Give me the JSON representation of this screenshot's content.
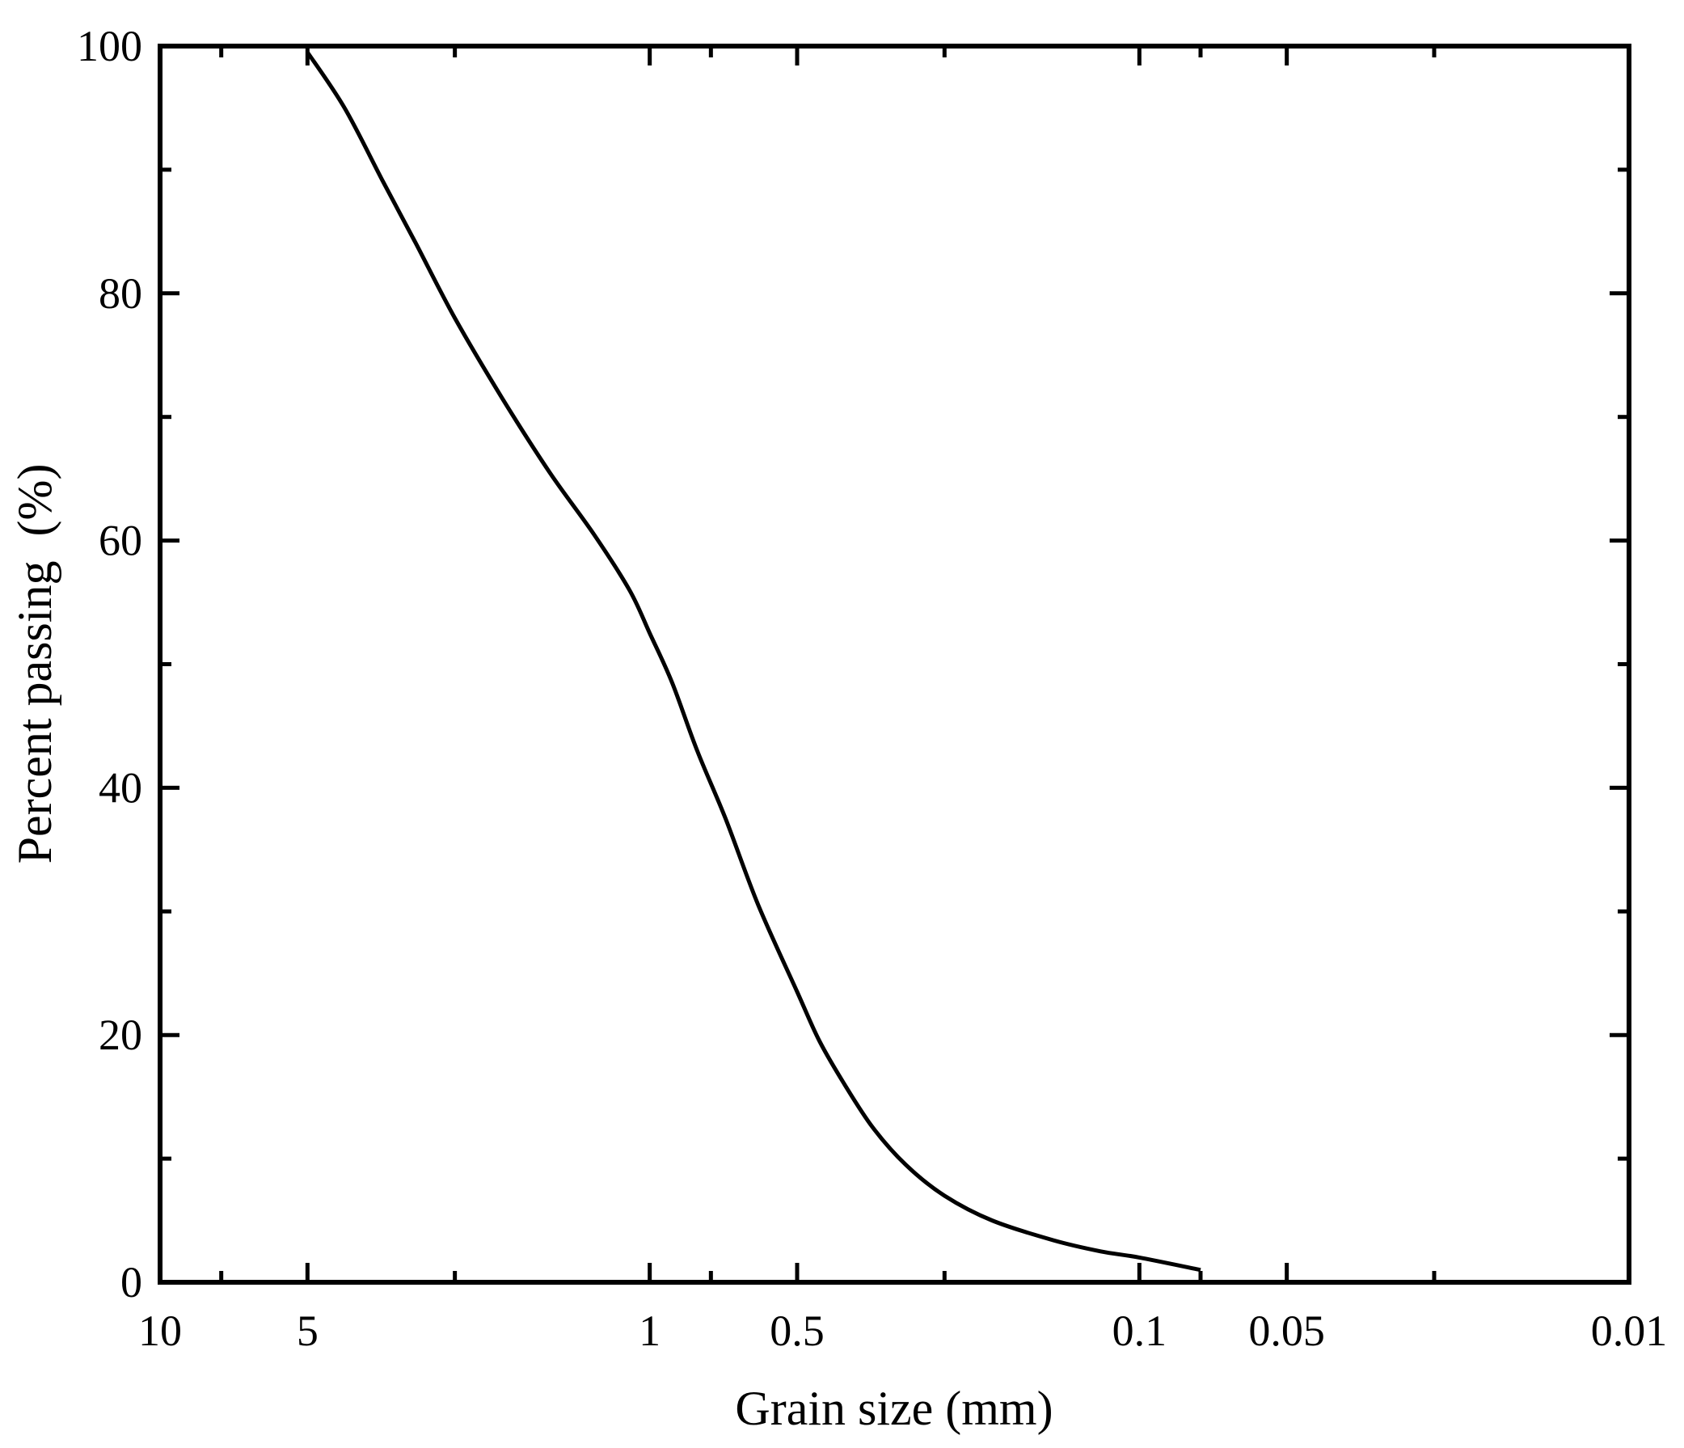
{
  "chart_data": {
    "type": "line",
    "title": "",
    "xlabel": "Grain size (mm)",
    "ylabel": "Percent passing  (%)",
    "x_scale": "log",
    "x_reversed": true,
    "xlim": [
      10,
      0.01
    ],
    "ylim": [
      0,
      100
    ],
    "grid": false,
    "legend": "none",
    "x_ticks": [
      {
        "value": 10,
        "label": "10"
      },
      {
        "value": 5,
        "label": "5"
      },
      {
        "value": 1,
        "label": "1"
      },
      {
        "value": 0.5,
        "label": "0.5"
      },
      {
        "value": 0.1,
        "label": "0.1"
      },
      {
        "value": 0.05,
        "label": "0.05"
      },
      {
        "value": 0.01,
        "label": "0.01"
      }
    ],
    "x_minor_ticks": [
      7.5,
      2.5,
      0.75,
      0.25,
      0.075,
      0.025
    ],
    "y_ticks": [
      {
        "value": 0,
        "label": "0"
      },
      {
        "value": 20,
        "label": "20"
      },
      {
        "value": 40,
        "label": "40"
      },
      {
        "value": 60,
        "label": "60"
      },
      {
        "value": 80,
        "label": "80"
      },
      {
        "value": 100,
        "label": "100"
      }
    ],
    "y_minor_ticks": [
      10,
      30,
      50,
      70,
      90
    ],
    "series": [
      {
        "color": "#000000",
        "points": [
          [
            5.0,
            99.5
          ],
          [
            4.2,
            95.0
          ],
          [
            3.5,
            89.0
          ],
          [
            3.0,
            84.0
          ],
          [
            2.5,
            78.0
          ],
          [
            2.0,
            71.5
          ],
          [
            1.6,
            65.5
          ],
          [
            1.3,
            60.5
          ],
          [
            1.1,
            56.0
          ],
          [
            1.0,
            52.5
          ],
          [
            0.9,
            48.5
          ],
          [
            0.8,
            43.0
          ],
          [
            0.7,
            37.5
          ],
          [
            0.6,
            30.5
          ],
          [
            0.5,
            23.5
          ],
          [
            0.45,
            19.5
          ],
          [
            0.4,
            16.0
          ],
          [
            0.35,
            12.5
          ],
          [
            0.3,
            9.5
          ],
          [
            0.25,
            7.0
          ],
          [
            0.2,
            5.0
          ],
          [
            0.15,
            3.4
          ],
          [
            0.12,
            2.5
          ],
          [
            0.1,
            2.0
          ],
          [
            0.075,
            1.0
          ]
        ]
      }
    ]
  }
}
